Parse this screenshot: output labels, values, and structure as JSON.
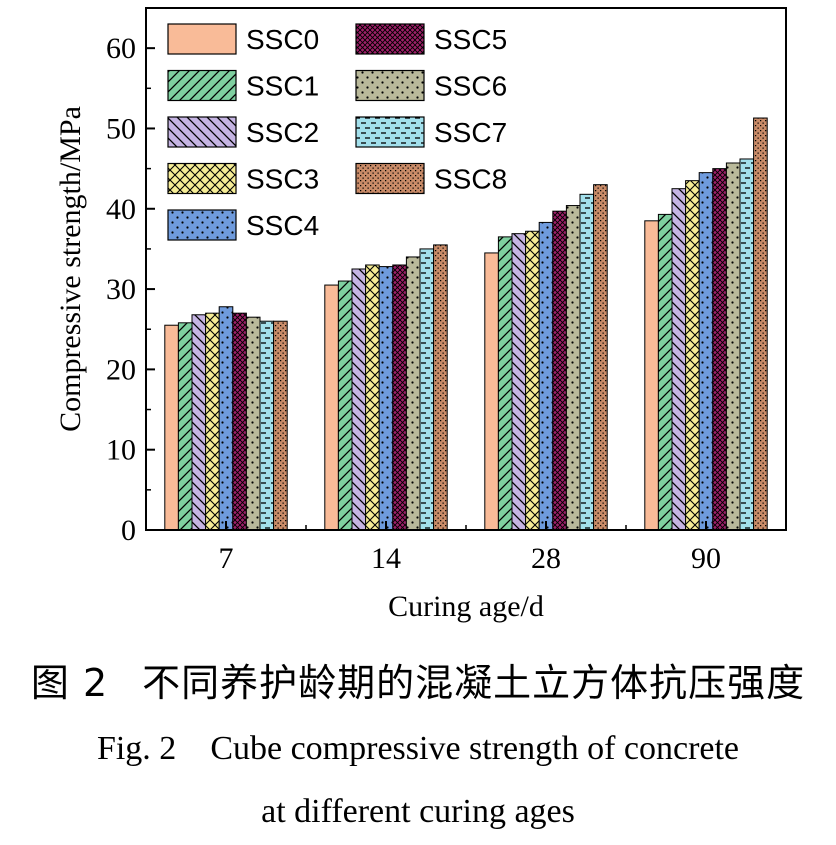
{
  "chart_data": {
    "type": "bar",
    "categories": [
      "7",
      "14",
      "28",
      "90"
    ],
    "xlabel": "Curing age/d",
    "ylabel": "Compressive strength/MPa",
    "ylim": [
      0,
      65
    ],
    "yticks": [
      0,
      10,
      20,
      30,
      40,
      50,
      60
    ],
    "grid": false,
    "legend_position": "top-left",
    "series": [
      {
        "name": "SSC0",
        "values": [
          25.5,
          30.5,
          34.5,
          38.5
        ],
        "color": "#F9BB98",
        "pattern": "solid"
      },
      {
        "name": "SSC1",
        "values": [
          25.8,
          31.0,
          36.5,
          39.3
        ],
        "color": "#7FD0A0",
        "pattern": "diagonal-hatch"
      },
      {
        "name": "SSC2",
        "values": [
          26.8,
          32.5,
          36.9,
          42.5
        ],
        "color": "#C5B4E3",
        "pattern": "backward-hatch"
      },
      {
        "name": "SSC3",
        "values": [
          27.0,
          33.0,
          37.2,
          43.5
        ],
        "color": "#F5EC95",
        "pattern": "crosshatch"
      },
      {
        "name": "SSC4",
        "values": [
          27.8,
          32.8,
          38.3,
          44.5
        ],
        "color": "#6F9BDD",
        "pattern": "dots"
      },
      {
        "name": "SSC5",
        "values": [
          27.0,
          33.0,
          39.7,
          45.0
        ],
        "color": "#A0206A",
        "pattern": "dense-crosshatch"
      },
      {
        "name": "SSC6",
        "values": [
          26.5,
          34.0,
          40.4,
          45.7
        ],
        "color": "#B9B99A",
        "pattern": "dots"
      },
      {
        "name": "SSC7",
        "values": [
          26.0,
          35.0,
          41.8,
          46.2
        ],
        "color": "#A3E0EC",
        "pattern": "dashes"
      },
      {
        "name": "SSC8",
        "values": [
          26.0,
          35.5,
          43.0,
          51.3
        ],
        "color": "#C98B68",
        "pattern": "checker"
      }
    ]
  },
  "caption": {
    "cn_label": "图 2",
    "cn_text": "不同养护龄期的混凝土立方体抗压强度",
    "en_label": "Fig. 2",
    "en_line1": "Cube compressive strength of concrete",
    "en_line2": "at different curing ages"
  }
}
